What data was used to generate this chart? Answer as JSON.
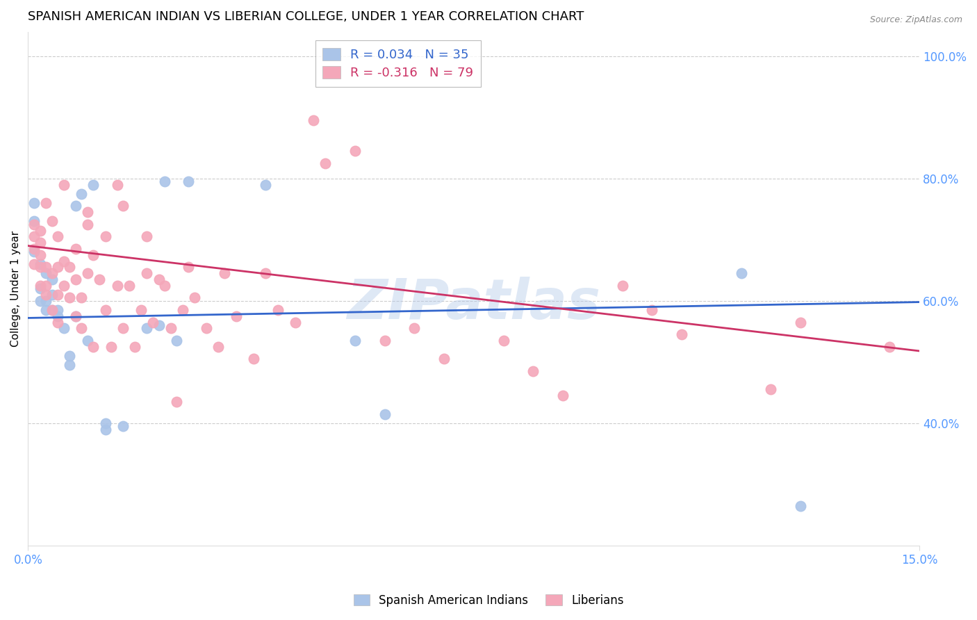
{
  "title": "SPANISH AMERICAN INDIAN VS LIBERIAN COLLEGE, UNDER 1 YEAR CORRELATION CHART",
  "source": "Source: ZipAtlas.com",
  "ylabel": "College, Under 1 year",
  "xlim": [
    0.0,
    0.15
  ],
  "ylim": [
    0.2,
    1.04
  ],
  "yticks": [
    0.4,
    0.6,
    0.8,
    1.0
  ],
  "ytick_labels": [
    "40.0%",
    "60.0%",
    "80.0%",
    "100.0%"
  ],
  "watermark": "ZIPatlas",
  "legend": {
    "blue_label": "R = 0.034   N = 35",
    "pink_label": "R = -0.316   N = 79",
    "blue_group": "Spanish American Indians",
    "pink_group": "Liberians"
  },
  "blue_scatter": {
    "x": [
      0.001,
      0.001,
      0.001,
      0.002,
      0.002,
      0.002,
      0.003,
      0.003,
      0.003,
      0.004,
      0.004,
      0.004,
      0.005,
      0.005,
      0.006,
      0.007,
      0.007,
      0.008,
      0.008,
      0.009,
      0.01,
      0.011,
      0.013,
      0.013,
      0.016,
      0.02,
      0.022,
      0.023,
      0.025,
      0.027,
      0.04,
      0.055,
      0.06,
      0.12,
      0.13
    ],
    "y": [
      0.68,
      0.73,
      0.76,
      0.66,
      0.62,
      0.6,
      0.585,
      0.6,
      0.645,
      0.585,
      0.61,
      0.635,
      0.575,
      0.585,
      0.555,
      0.495,
      0.51,
      0.575,
      0.755,
      0.775,
      0.535,
      0.79,
      0.39,
      0.4,
      0.395,
      0.555,
      0.56,
      0.795,
      0.535,
      0.795,
      0.79,
      0.535,
      0.415,
      0.645,
      0.265
    ]
  },
  "pink_scatter": {
    "x": [
      0.001,
      0.001,
      0.001,
      0.001,
      0.002,
      0.002,
      0.002,
      0.002,
      0.002,
      0.003,
      0.003,
      0.003,
      0.003,
      0.004,
      0.004,
      0.004,
      0.005,
      0.005,
      0.005,
      0.005,
      0.006,
      0.006,
      0.006,
      0.007,
      0.007,
      0.008,
      0.008,
      0.008,
      0.009,
      0.009,
      0.01,
      0.01,
      0.01,
      0.011,
      0.011,
      0.012,
      0.013,
      0.013,
      0.014,
      0.015,
      0.015,
      0.016,
      0.016,
      0.017,
      0.018,
      0.019,
      0.02,
      0.02,
      0.021,
      0.022,
      0.023,
      0.024,
      0.025,
      0.026,
      0.027,
      0.028,
      0.03,
      0.032,
      0.033,
      0.035,
      0.038,
      0.04,
      0.042,
      0.045,
      0.048,
      0.05,
      0.055,
      0.06,
      0.065,
      0.07,
      0.08,
      0.085,
      0.09,
      0.1,
      0.105,
      0.11,
      0.125,
      0.13,
      0.145
    ],
    "y": [
      0.66,
      0.685,
      0.705,
      0.725,
      0.625,
      0.655,
      0.675,
      0.695,
      0.715,
      0.61,
      0.625,
      0.655,
      0.76,
      0.585,
      0.645,
      0.73,
      0.565,
      0.61,
      0.655,
      0.705,
      0.625,
      0.665,
      0.79,
      0.605,
      0.655,
      0.575,
      0.635,
      0.685,
      0.555,
      0.605,
      0.725,
      0.745,
      0.645,
      0.525,
      0.675,
      0.635,
      0.585,
      0.705,
      0.525,
      0.625,
      0.79,
      0.755,
      0.555,
      0.625,
      0.525,
      0.585,
      0.645,
      0.705,
      0.565,
      0.635,
      0.625,
      0.555,
      0.435,
      0.585,
      0.655,
      0.605,
      0.555,
      0.525,
      0.645,
      0.575,
      0.505,
      0.645,
      0.585,
      0.565,
      0.895,
      0.825,
      0.845,
      0.535,
      0.555,
      0.505,
      0.535,
      0.485,
      0.445,
      0.625,
      0.585,
      0.545,
      0.455,
      0.565,
      0.525
    ]
  },
  "blue_line": {
    "x": [
      0.0,
      0.15
    ],
    "y": [
      0.572,
      0.598
    ]
  },
  "pink_line": {
    "x": [
      0.0,
      0.15
    ],
    "y": [
      0.69,
      0.518
    ]
  },
  "scatter_color_blue": "#aac4e8",
  "scatter_color_pink": "#f4a7b9",
  "line_color_blue": "#3366cc",
  "line_color_pink": "#cc3366",
  "axis_color": "#5599ff",
  "grid_color": "#cccccc",
  "background_color": "#ffffff",
  "title_fontsize": 13,
  "label_fontsize": 11,
  "tick_fontsize": 12,
  "scatter_size": 110
}
